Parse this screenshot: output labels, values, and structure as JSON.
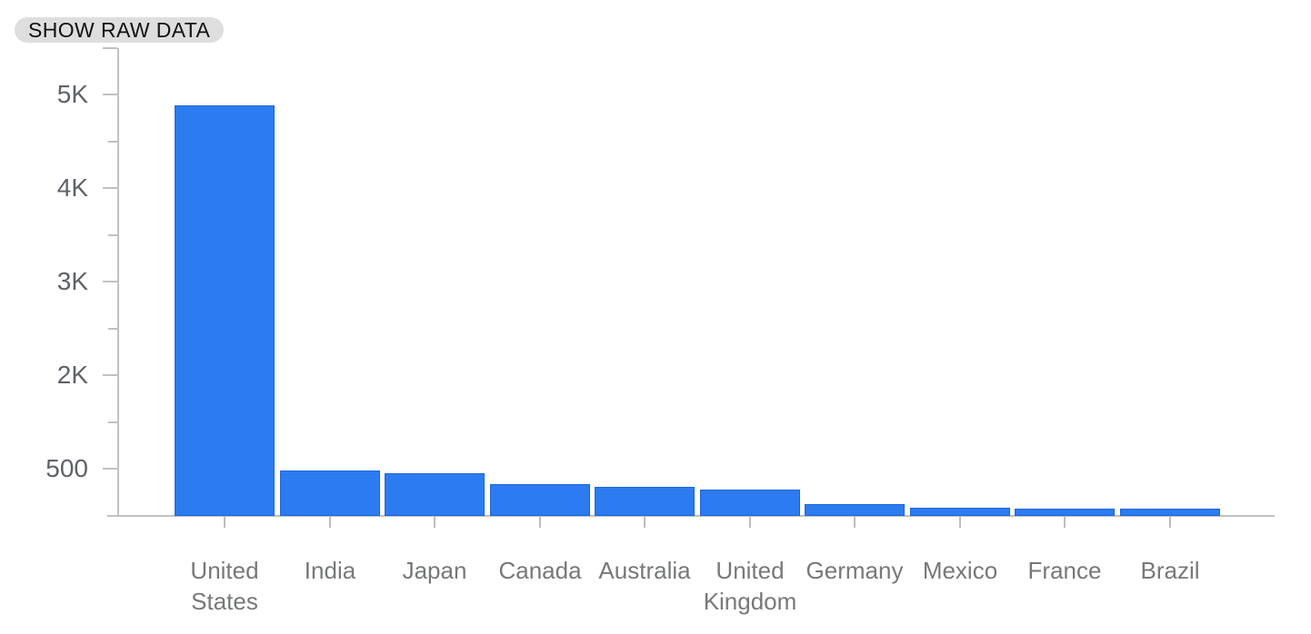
{
  "toolbar": {
    "show_raw_data_label": "SHOW RAW DATA"
  },
  "chart_data": {
    "type": "bar",
    "title": "",
    "xlabel": "",
    "ylabel": "",
    "categories": [
      "United States",
      "India",
      "Japan",
      "Canada",
      "Australia",
      "United Kingdom",
      "Germany",
      "Mexico",
      "France",
      "Brazil"
    ],
    "values": [
      4890,
      480,
      450,
      340,
      305,
      280,
      120,
      80,
      78,
      70
    ],
    "y_axis": {
      "tick_labels": [
        "500",
        "2K",
        "3K",
        "4K",
        "5K"
      ],
      "tick_values": [
        500,
        2000,
        3000,
        4000,
        5000
      ],
      "baseline_value": 0,
      "minor_ticks_between_labels": true,
      "evenly_spaced_ticks": true,
      "grid": false
    },
    "legend": null,
    "colors": {
      "bar_fill": "#2d7bf0",
      "bar_edge": "#1b66d9",
      "axis": "#c1c1c1",
      "y_tick_label": "#5f6368",
      "x_category_label": "#76787a",
      "button_bg": "#dedede",
      "button_text": "#111111"
    }
  }
}
